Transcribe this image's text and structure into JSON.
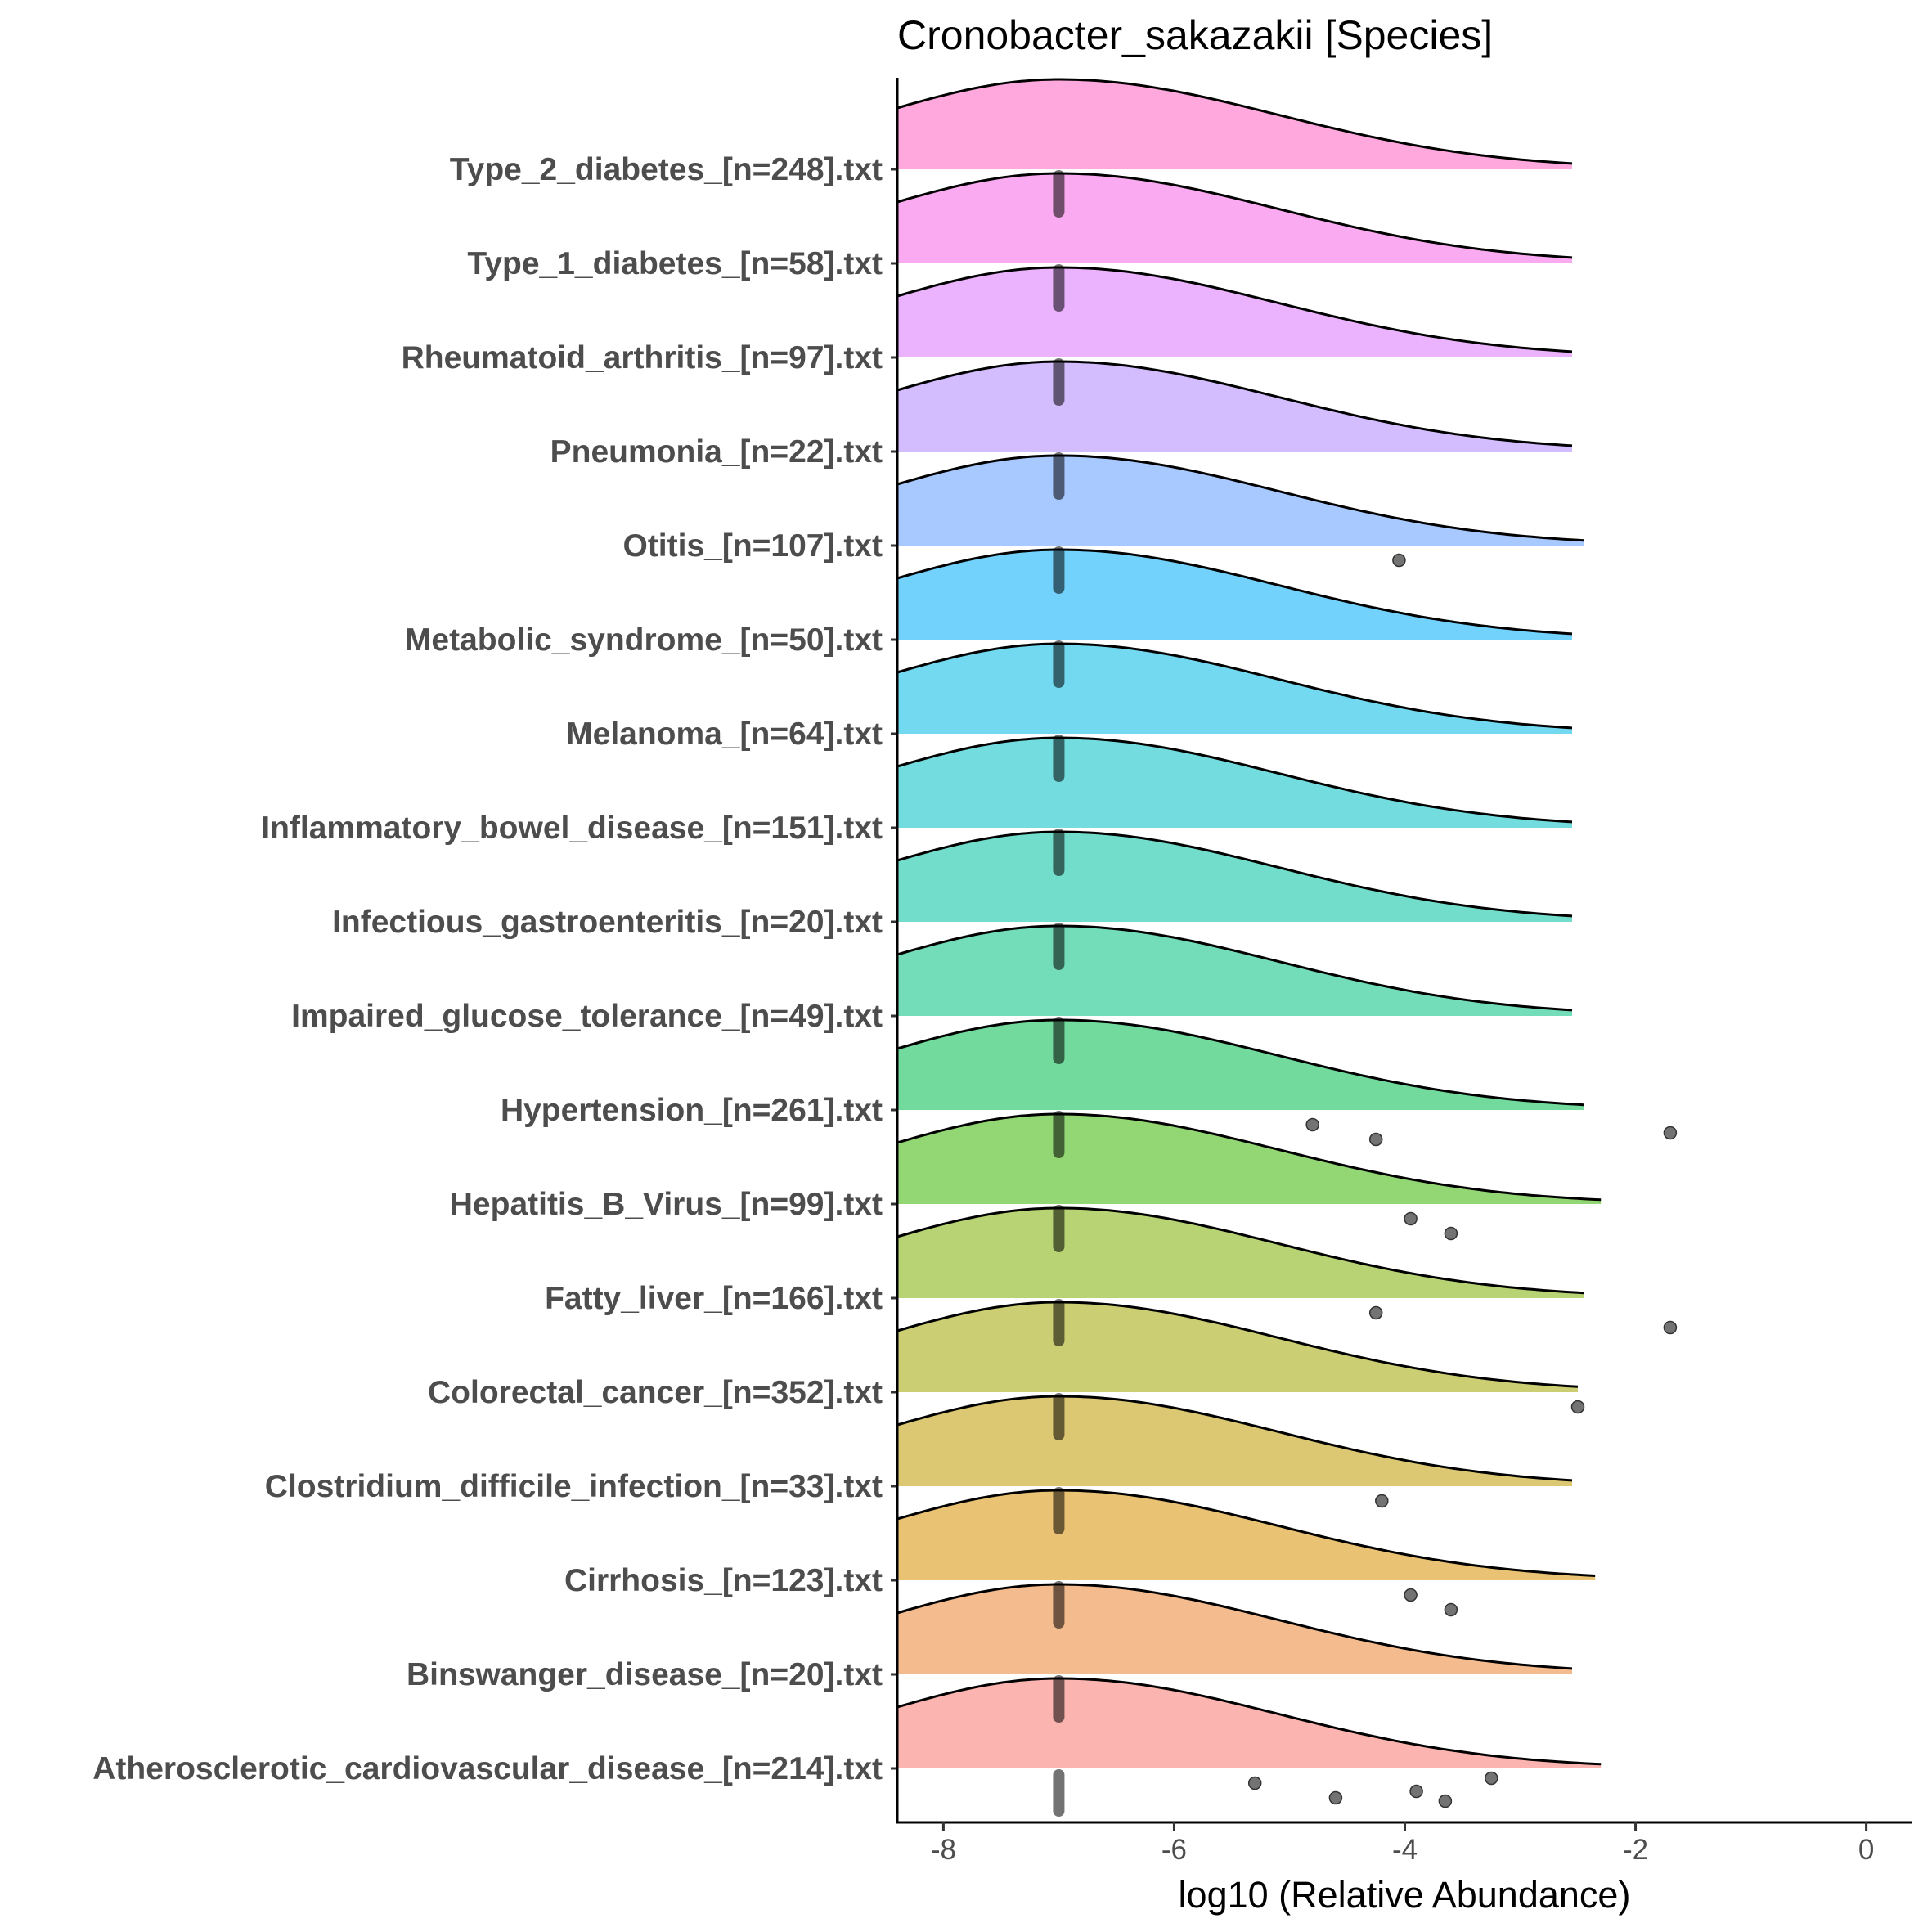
{
  "chart_data": {
    "type": "ridgeline",
    "title": "Cronobacter_sakazakii [Species]",
    "xlabel": "log10 (Relative Abundance)",
    "ylabel": "",
    "xlim": [
      -8.4,
      0.4
    ],
    "x_ticks": [
      -8,
      -6,
      -4,
      -2,
      0
    ],
    "x_tick_labels": [
      "-8",
      "-6",
      "-4",
      "-2",
      "0"
    ],
    "grid": false,
    "legend": "none",
    "density_peak_x": -7,
    "groups": [
      {
        "label": "Atherosclerotic_cardiovascular_disease_[n=214].txt",
        "color": "#f8766d",
        "tail_end": -2.3,
        "outliers": [
          -5.3,
          -4.6,
          -3.9,
          -3.65,
          -3.25
        ],
        "median_x": -7
      },
      {
        "label": "Binswanger_disease_[n=20].txt",
        "color": "#ea8331",
        "tail_end": -2.55,
        "outliers": [],
        "median_x": -7
      },
      {
        "label": "Cirrhosis_[n=123].txt",
        "color": "#d89000",
        "tail_end": -2.35,
        "outliers": [
          -3.95,
          -3.6
        ],
        "median_x": -7
      },
      {
        "label": "Clostridium_difficile_infection_[n=33].txt",
        "color": "#c09b00",
        "tail_end": -2.55,
        "outliers": [
          -4.2
        ],
        "median_x": -7
      },
      {
        "label": "Colorectal_cancer_[n=352].txt",
        "color": "#a3a500",
        "tail_end": -2.5,
        "outliers": [
          -2.5
        ],
        "median_x": -7
      },
      {
        "label": "Fatty_liver_[n=166].txt",
        "color": "#7cae00",
        "tail_end": -2.45,
        "outliers": [
          -4.25,
          -1.7
        ],
        "median_x": -7
      },
      {
        "label": "Hepatitis_B_Virus_[n=99].txt",
        "color": "#39b600",
        "tail_end": -2.3,
        "outliers": [
          -3.95,
          -3.6
        ],
        "median_x": -7
      },
      {
        "label": "Hypertension_[n=261].txt",
        "color": "#00bb4e",
        "tail_end": -2.45,
        "outliers": [
          -4.8,
          -4.25,
          -1.7
        ],
        "median_x": -7
      },
      {
        "label": "Impaired_glucose_tolerance_[n=49].txt",
        "color": "#00bf7d",
        "tail_end": -2.55,
        "outliers": [],
        "median_x": -7
      },
      {
        "label": "Infectious_gastroenteritis_[n=20].txt",
        "color": "#00c1a3",
        "tail_end": -2.55,
        "outliers": [],
        "median_x": -7
      },
      {
        "label": "Inflammatory_bowel_disease_[n=151].txt",
        "color": "#00bfc4",
        "tail_end": -2.55,
        "outliers": [],
        "median_x": -7
      },
      {
        "label": "Melanoma_[n=64].txt",
        "color": "#00b9e3",
        "tail_end": -2.55,
        "outliers": [],
        "median_x": -7
      },
      {
        "label": "Metabolic_syndrome_[n=50].txt",
        "color": "#00adfa",
        "tail_end": -2.55,
        "outliers": [],
        "median_x": -7
      },
      {
        "label": "Otitis_[n=107].txt",
        "color": "#619cff",
        "tail_end": -2.45,
        "outliers": [
          -4.05
        ],
        "median_x": -7
      },
      {
        "label": "Pneumonia_[n=22].txt",
        "color": "#ae87ff",
        "tail_end": -2.55,
        "outliers": [],
        "median_x": -7
      },
      {
        "label": "Rheumatoid_arthritis_[n=97].txt",
        "color": "#db72fb",
        "tail_end": -2.55,
        "outliers": [],
        "median_x": -7
      },
      {
        "label": "Type_1_diabetes_[n=58].txt",
        "color": "#f564e3",
        "tail_end": -2.55,
        "outliers": [],
        "median_x": -7
      },
      {
        "label": "Type_2_diabetes_[n=248].txt",
        "color": "#ff61c3",
        "tail_end": -2.55,
        "outliers": [],
        "median_x": -7
      }
    ]
  }
}
